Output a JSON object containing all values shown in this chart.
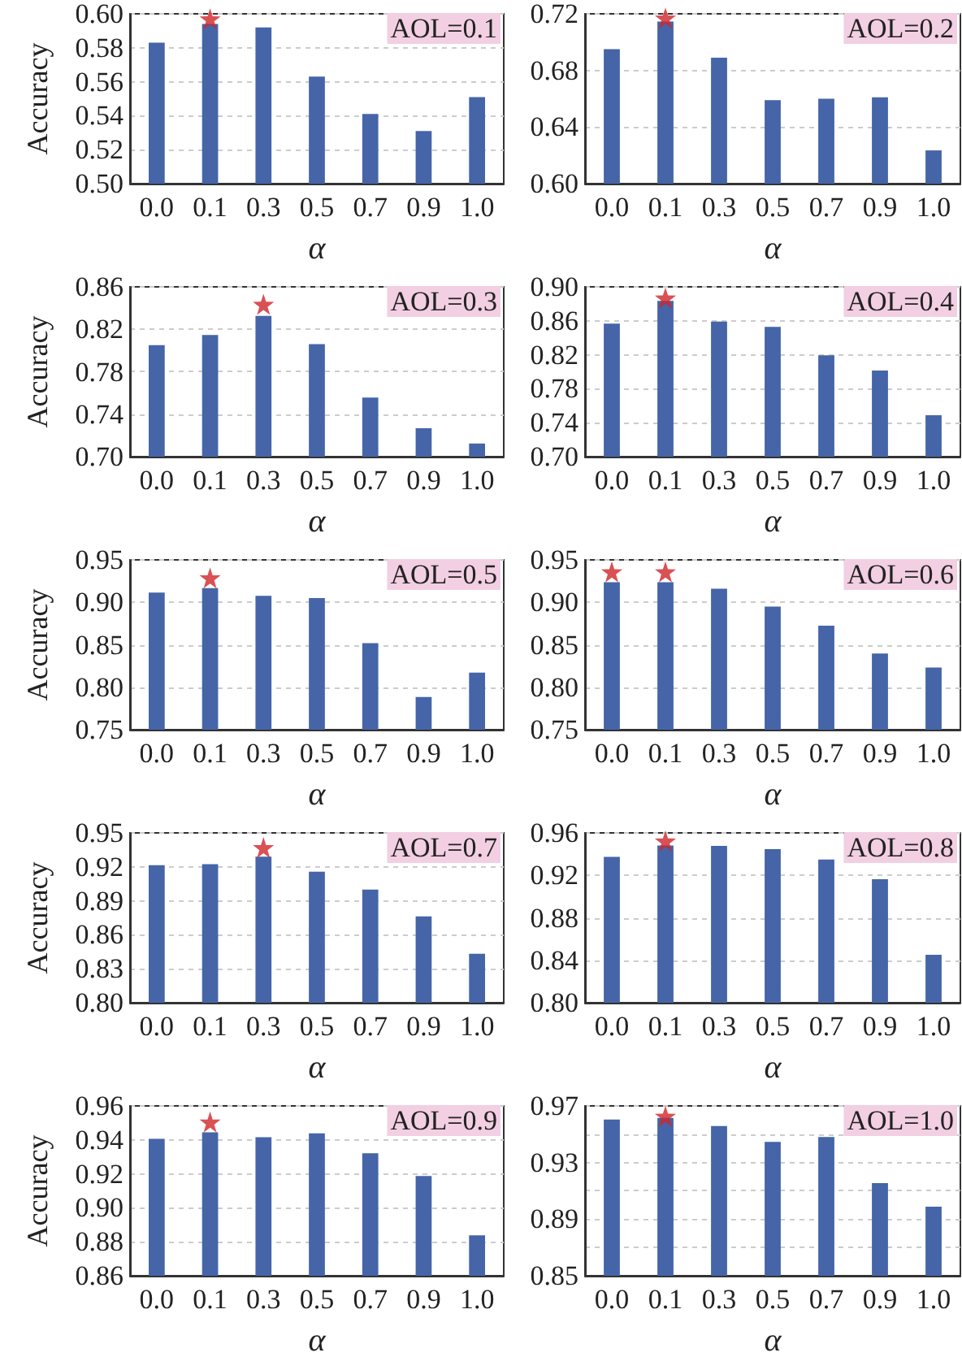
{
  "chart_data": [
    {
      "type": "bar",
      "ylabel": "Accuracy",
      "xlabel": "α",
      "annotations": [
        "AOL=0.1"
      ],
      "grid": "y",
      "categories": [
        "0.0",
        "0.1",
        "0.3",
        "0.5",
        "0.7",
        "0.9",
        "1.0"
      ],
      "ylim": [
        0.5,
        0.6
      ],
      "yticks": [
        {
          "value": 0.5,
          "label": "0.50"
        },
        {
          "value": 0.52,
          "label": "0.52"
        },
        {
          "value": 0.54,
          "label": "0.54"
        },
        {
          "value": 0.56,
          "label": "0.56"
        },
        {
          "value": 0.58,
          "label": "0.58"
        },
        {
          "value": 0.6,
          "label": "0.60"
        }
      ],
      "series": [
        {
          "color": "#4565a8",
          "values": [
            0.583,
            0.594,
            0.592,
            0.563,
            0.541,
            0.531,
            0.551
          ]
        },
        {
          "type": "scatter",
          "marker": "star",
          "color": "#d0262b",
          "x": [
            "0.1"
          ],
          "values": [
            0.597
          ]
        }
      ]
    },
    {
      "type": "bar",
      "xlabel": "α",
      "annotations": [
        "AOL=0.2"
      ],
      "grid": "y",
      "categories": [
        "0.0",
        "0.1",
        "0.3",
        "0.5",
        "0.7",
        "0.9",
        "1.0"
      ],
      "ylim": [
        0.6,
        0.72
      ],
      "yticks": [
        {
          "value": 0.6,
          "label": "0.60"
        },
        {
          "value": 0.64,
          "label": "0.64"
        },
        {
          "value": 0.68,
          "label": "0.68"
        },
        {
          "value": 0.72,
          "label": "0.72"
        }
      ],
      "series": [
        {
          "color": "#4565a8",
          "values": [
            0.695,
            0.7145,
            0.689,
            0.659,
            0.66,
            0.661,
            0.6235
          ]
        },
        {
          "type": "scatter",
          "marker": "star",
          "color": "#d0262b",
          "x": [
            "0.1"
          ],
          "values": [
            0.717
          ]
        }
      ]
    },
    {
      "type": "bar",
      "ylabel": "Accuracy",
      "xlabel": "α",
      "annotations": [
        "AOL=0.3"
      ],
      "grid": "y",
      "categories": [
        "0.0",
        "0.1",
        "0.3",
        "0.5",
        "0.7",
        "0.9",
        "1.0"
      ],
      "ylim": [
        0.7,
        0.86
      ],
      "yticks": [
        {
          "value": 0.7,
          "label": "0.70"
        },
        {
          "value": 0.74,
          "label": "0.74"
        },
        {
          "value": 0.78,
          "label": "0.78"
        },
        {
          "value": 0.82,
          "label": "0.82"
        },
        {
          "value": 0.86,
          "label": "0.86"
        }
      ],
      "series": [
        {
          "color": "#4565a8",
          "values": [
            0.805,
            0.8146,
            0.8327,
            0.806,
            0.7557,
            0.7268,
            0.7124
          ]
        },
        {
          "type": "scatter",
          "marker": "star",
          "color": "#d0262b",
          "x": [
            "0.3"
          ],
          "values": [
            0.8435
          ]
        }
      ]
    },
    {
      "type": "bar",
      "xlabel": "α",
      "annotations": [
        "AOL=0.4"
      ],
      "grid": "y",
      "categories": [
        "0.0",
        "0.1",
        "0.3",
        "0.5",
        "0.7",
        "0.9",
        "1.0"
      ],
      "ylim": [
        0.7,
        0.9
      ],
      "yticks": [
        {
          "value": 0.7,
          "label": "0.70"
        },
        {
          "value": 0.74,
          "label": "0.74"
        },
        {
          "value": 0.78,
          "label": "0.78"
        },
        {
          "value": 0.82,
          "label": "0.82"
        },
        {
          "value": 0.86,
          "label": "0.86"
        },
        {
          "value": 0.9,
          "label": "0.90"
        }
      ],
      "series": [
        {
          "color": "#4565a8",
          "values": [
            0.8567,
            0.8836,
            0.8592,
            0.8528,
            0.8194,
            0.8014,
            0.7488
          ]
        },
        {
          "type": "scatter",
          "marker": "star",
          "color": "#d0262b",
          "x": [
            "0.1"
          ],
          "values": [
            0.8868
          ]
        }
      ]
    },
    {
      "type": "bar",
      "ylabel": "Accuracy",
      "xlabel": "α",
      "annotations": [
        "AOL=0.5"
      ],
      "grid": "y",
      "categories": [
        "0.0",
        "0.1",
        "0.3",
        "0.5",
        "0.7",
        "0.9",
        "1.0"
      ],
      "ylim": [
        0.75,
        0.95
      ],
      "yticks": [
        {
          "value": 0.75,
          "label": "0.75"
        },
        {
          "value": 0.8,
          "label": "0.80"
        },
        {
          "value": 0.85,
          "label": "0.85"
        },
        {
          "value": 0.9,
          "label": "0.90"
        },
        {
          "value": 0.95,
          "label": "0.95"
        }
      ],
      "series": [
        {
          "color": "#4565a8",
          "values": [
            0.9115,
            0.9167,
            0.9077,
            0.905,
            0.852,
            0.7885,
            0.8173
          ]
        },
        {
          "type": "scatter",
          "marker": "star",
          "color": "#d0262b",
          "x": [
            "0.1"
          ],
          "values": [
            0.9288
          ]
        }
      ]
    },
    {
      "type": "bar",
      "xlabel": "α",
      "annotations": [
        "AOL=0.6"
      ],
      "grid": "y",
      "categories": [
        "0.0",
        "0.1",
        "0.3",
        "0.5",
        "0.7",
        "0.9",
        "1.0"
      ],
      "ylim": [
        0.75,
        0.95
      ],
      "yticks": [
        {
          "value": 0.75,
          "label": "0.75"
        },
        {
          "value": 0.8,
          "label": "0.80"
        },
        {
          "value": 0.85,
          "label": "0.85"
        },
        {
          "value": 0.9,
          "label": "0.90"
        },
        {
          "value": 0.95,
          "label": "0.95"
        }
      ],
      "series": [
        {
          "color": "#4565a8",
          "values": [
            0.9237,
            0.9237,
            0.916,
            0.8949,
            0.8724,
            0.8397,
            0.8231
          ]
        },
        {
          "type": "scatter",
          "marker": "star",
          "color": "#d0262b",
          "x": [
            "0.0",
            "0.1"
          ],
          "values": [
            0.9359,
            0.9359
          ]
        }
      ]
    },
    {
      "type": "bar",
      "ylabel": "Accuracy",
      "xlabel": "α",
      "annotations": [
        "AOL=0.7"
      ],
      "grid": "y",
      "categories": [
        "0.0",
        "0.1",
        "0.3",
        "0.5",
        "0.7",
        "0.9",
        "1.0"
      ],
      "ylim": [
        0.8,
        0.95
      ],
      "yticks": [
        {
          "value": 0.8,
          "label": "0.80"
        },
        {
          "value": 0.83,
          "label": "0.83"
        },
        {
          "value": 0.86,
          "label": "0.86"
        },
        {
          "value": 0.89,
          "label": "0.89"
        },
        {
          "value": 0.92,
          "label": "0.92"
        },
        {
          "value": 0.95,
          "label": "0.95"
        }
      ],
      "series": [
        {
          "color": "#4565a8",
          "values": [
            0.9214,
            0.9224,
            0.929,
            0.9157,
            0.9,
            0.8762,
            0.8433
          ]
        },
        {
          "type": "scatter",
          "marker": "star",
          "color": "#d0262b",
          "x": [
            "0.3"
          ],
          "values": [
            0.937
          ]
        }
      ]
    },
    {
      "type": "bar",
      "xlabel": "α",
      "annotations": [
        "AOL=0.8"
      ],
      "grid": "y",
      "categories": [
        "0.0",
        "0.1",
        "0.3",
        "0.5",
        "0.7",
        "0.9",
        "1.0"
      ],
      "ylim": [
        0.8,
        0.96
      ],
      "yticks": [
        {
          "value": 0.8,
          "label": "0.80"
        },
        {
          "value": 0.84,
          "label": "0.84"
        },
        {
          "value": 0.88,
          "label": "0.88"
        },
        {
          "value": 0.92,
          "label": "0.92"
        },
        {
          "value": 0.96,
          "label": "0.96"
        }
      ],
      "series": [
        {
          "color": "#4565a8",
          "values": [
            0.9374,
            0.9482,
            0.9477,
            0.9446,
            0.9349,
            0.9164,
            0.8451
          ]
        },
        {
          "type": "scatter",
          "marker": "star",
          "color": "#d0262b",
          "x": [
            "0.1"
          ],
          "values": [
            0.9523
          ]
        }
      ]
    },
    {
      "type": "bar",
      "ylabel": "Accuracy",
      "xlabel": "α",
      "annotations": [
        "AOL=0.9"
      ],
      "grid": "y",
      "categories": [
        "0.0",
        "0.1",
        "0.3",
        "0.5",
        "0.7",
        "0.9",
        "1.0"
      ],
      "ylim": [
        0.86,
        0.96
      ],
      "yticks": [
        {
          "value": 0.86,
          "label": "0.86"
        },
        {
          "value": 0.88,
          "label": "0.88"
        },
        {
          "value": 0.9,
          "label": "0.90"
        },
        {
          "value": 0.92,
          "label": "0.92"
        },
        {
          "value": 0.94,
          "label": "0.94"
        },
        {
          "value": 0.96,
          "label": "0.96"
        }
      ],
      "series": [
        {
          "color": "#4565a8",
          "values": [
            0.9406,
            0.9444,
            0.9416,
            0.9438,
            0.9321,
            0.9187,
            0.8838
          ]
        },
        {
          "type": "scatter",
          "marker": "star",
          "color": "#d0262b",
          "x": [
            "0.1"
          ],
          "values": [
            0.9505
          ]
        }
      ]
    },
    {
      "type": "bar",
      "xlabel": "α",
      "annotations": [
        "AOL=1.0"
      ],
      "grid": "y",
      "categories": [
        "0.0",
        "0.1",
        "0.3",
        "0.5",
        "0.7",
        "0.9",
        "1.0"
      ],
      "ylim": [
        0.85,
        0.97
      ],
      "yticks": [
        {
          "value": 0.85,
          "label": "0.85"
        },
        {
          "value": 0.87,
          "label": null
        },
        {
          "value": 0.89,
          "label": "0.89"
        },
        {
          "value": 0.91,
          "label": null
        },
        {
          "value": 0.93,
          "label": "0.93"
        },
        {
          "value": 0.95,
          "label": null
        },
        {
          "value": 0.97,
          "label": "0.97"
        }
      ],
      "series": [
        {
          "color": "#4565a8",
          "values": [
            0.9604,
            0.9615,
            0.9558,
            0.9446,
            0.9481,
            0.9154,
            0.8988
          ]
        },
        {
          "type": "scatter",
          "marker": "star",
          "color": "#d0262b",
          "x": [
            "0.1"
          ],
          "values": [
            0.9627
          ]
        }
      ]
    }
  ]
}
